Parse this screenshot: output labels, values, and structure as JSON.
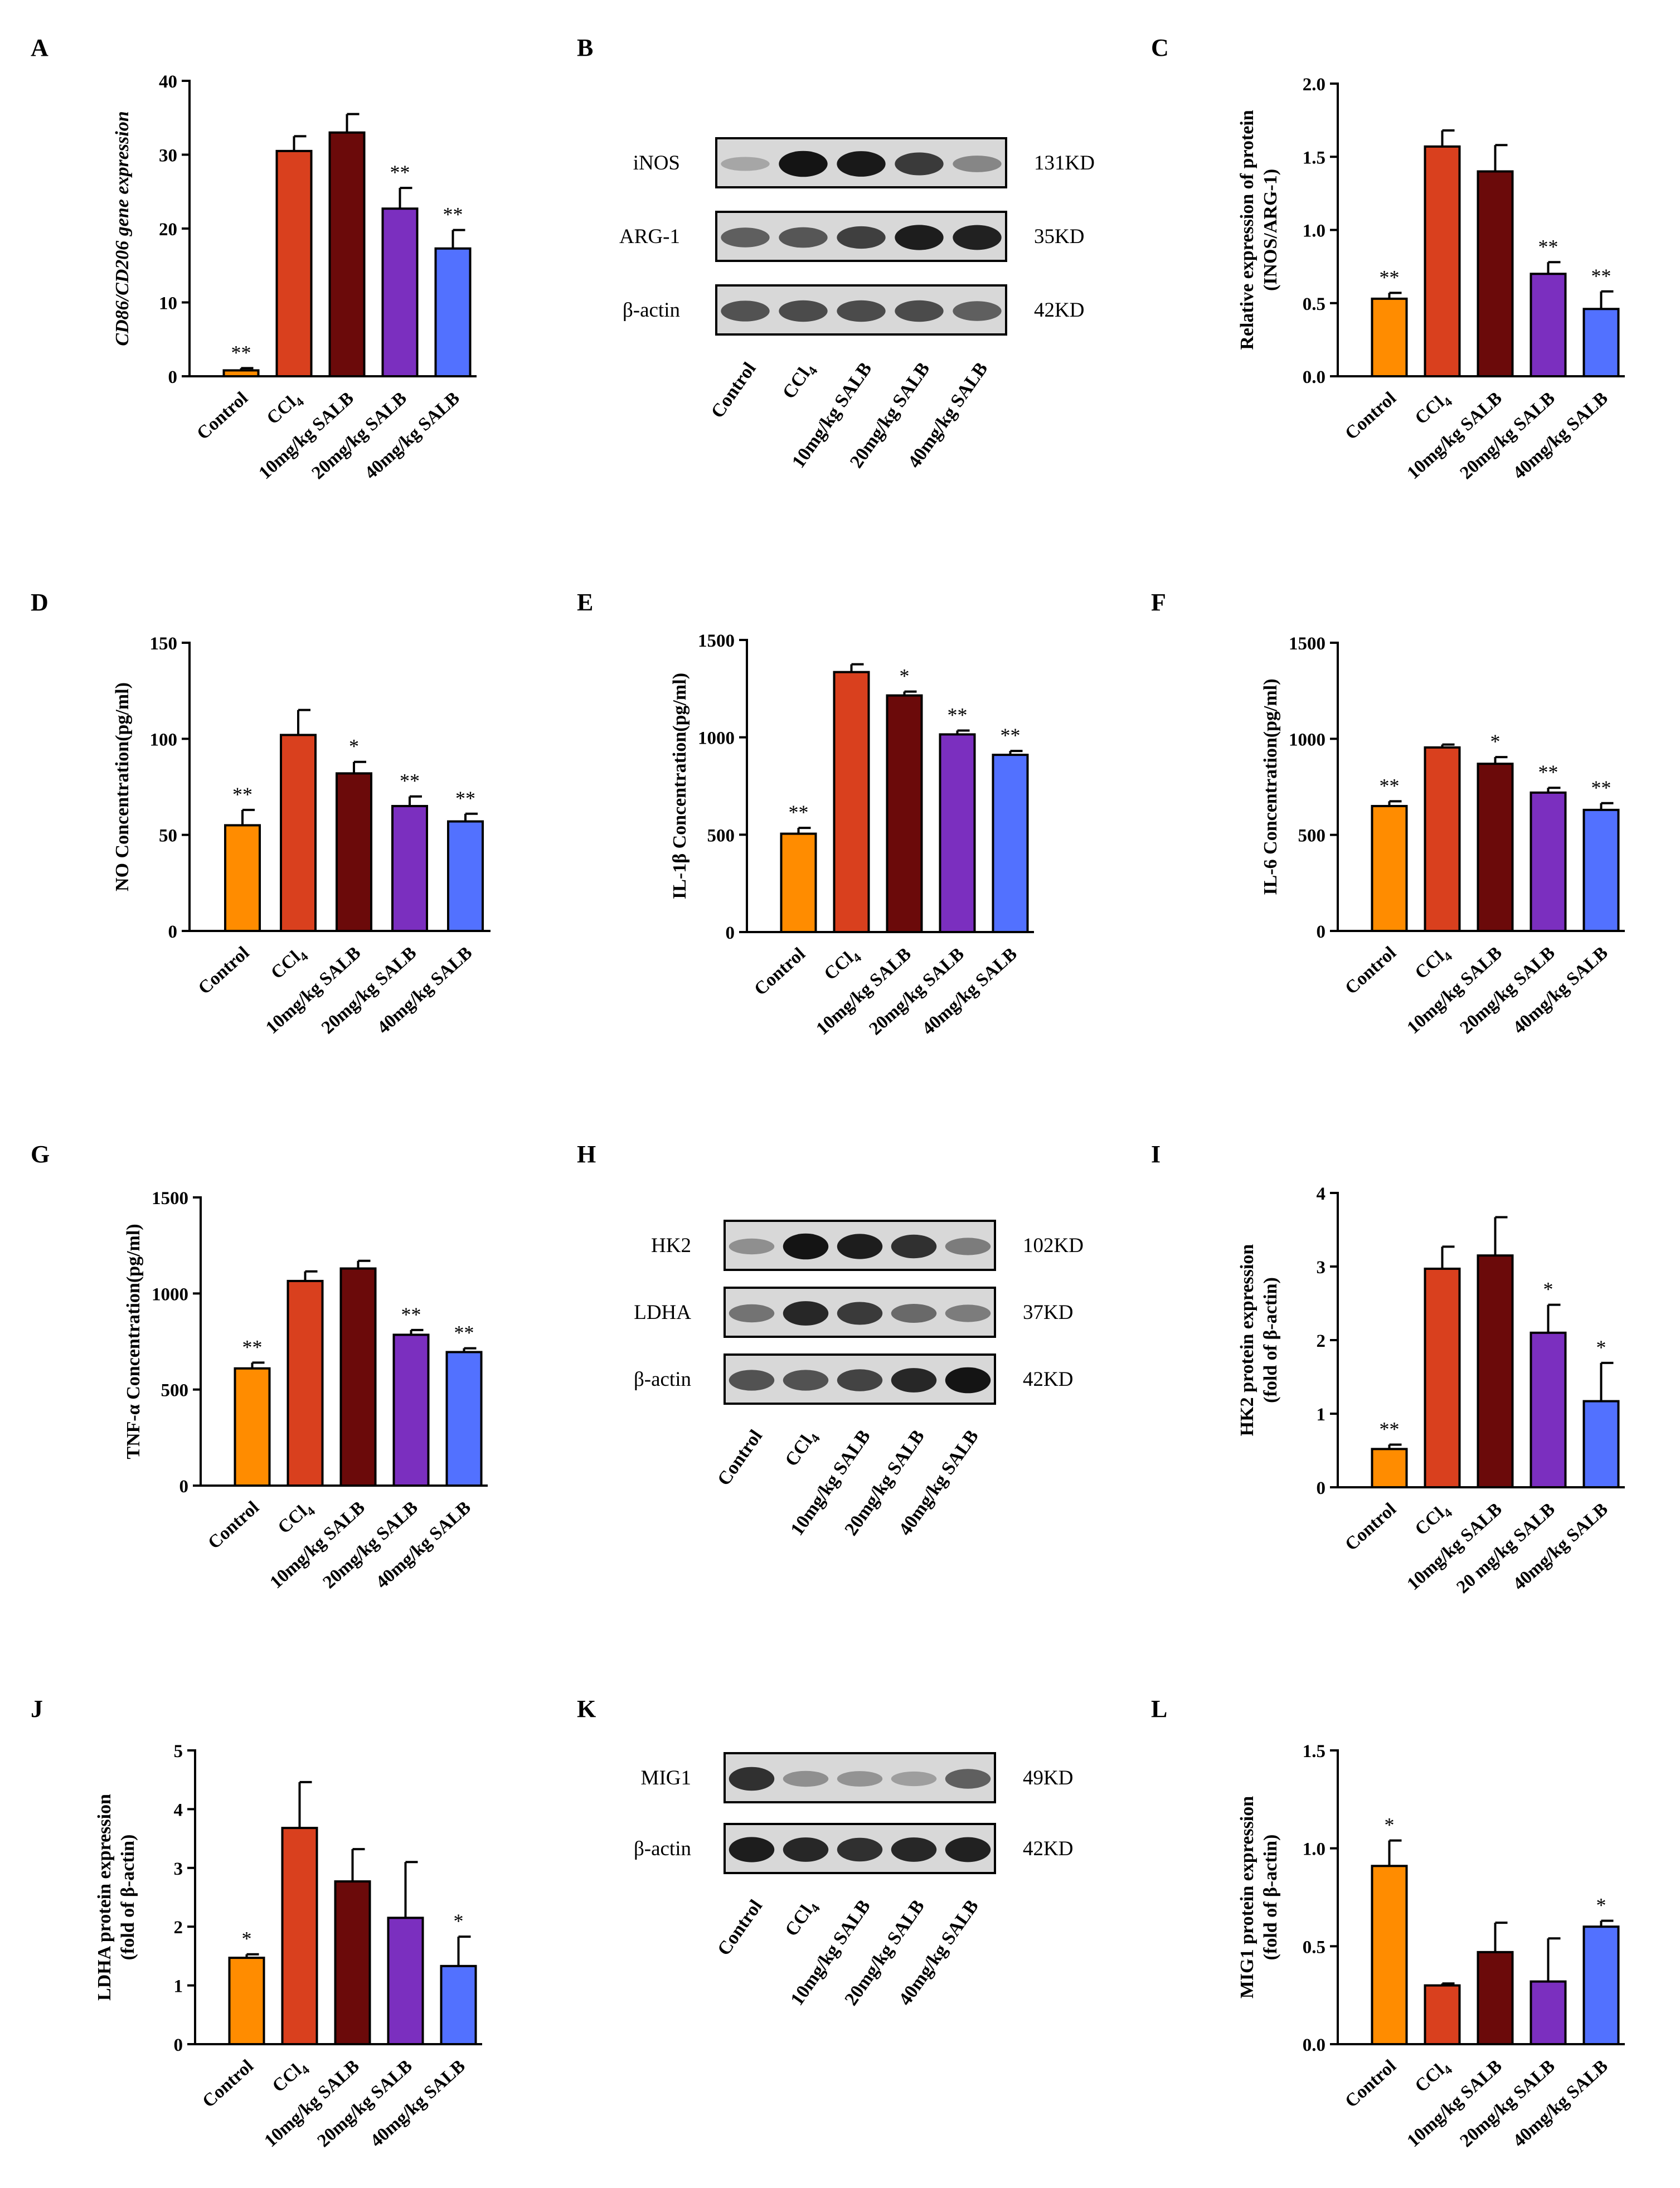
{
  "figure": {
    "groups": [
      "Control",
      "CCl4",
      "10mg/kg SALB",
      "20mg/kg SALB",
      "40mg/kg SALB"
    ],
    "group_colors": [
      "#FF8C00",
      "#D9401E",
      "#6B0A0A",
      "#7B2FBF",
      "#5271FF"
    ]
  },
  "chart_data": [
    {
      "panel": "A",
      "type": "bar",
      "ylabel": "CD86/CD206 gene expression",
      "ylabel_italic": true,
      "ylim": [
        0,
        40
      ],
      "yticks": [
        0,
        10,
        20,
        30,
        40
      ],
      "categories": [
        "Control",
        "CCl4",
        "10mg/kg SALB",
        "20mg/kg SALB",
        "40mg/kg SALB"
      ],
      "values": [
        0.8,
        30.5,
        33,
        22.7,
        17.3
      ],
      "errors": [
        0.3,
        2,
        2.5,
        2.8,
        2.5
      ],
      "annotations": [
        "**",
        "",
        "",
        "**",
        "**"
      ]
    },
    {
      "panel": "C",
      "type": "bar",
      "ylabel": "Relative expression of protein",
      "ylabel2": "(INOS/ARG-1)",
      "ylim": [
        0,
        2.0
      ],
      "yticks": [
        "0.0",
        "0.5",
        "1.0",
        "1.5",
        "2.0"
      ],
      "categories": [
        "Control",
        "CCl4",
        "10mg/kg SALB",
        "20mg/kg SALB",
        "40mg/kg SALB"
      ],
      "values": [
        0.53,
        1.57,
        1.4,
        0.7,
        0.46
      ],
      "errors": [
        0.04,
        0.11,
        0.18,
        0.08,
        0.12
      ],
      "annotations": [
        "**",
        "",
        "",
        "**",
        "**"
      ]
    },
    {
      "panel": "D",
      "type": "bar",
      "ylabel": "NO Concentration(pg/ml)",
      "ylim": [
        0,
        150
      ],
      "yticks": [
        0,
        50,
        100,
        150
      ],
      "categories": [
        "Control",
        "CCl4",
        "10mg/kg SALB",
        "20mg/kg SALB",
        "40mg/kg SALB"
      ],
      "values": [
        55,
        102,
        82,
        65,
        57
      ],
      "errors": [
        8,
        13,
        6,
        5,
        4
      ],
      "annotations": [
        "**",
        "",
        "*",
        "**",
        "**"
      ]
    },
    {
      "panel": "E",
      "type": "bar",
      "ylabel": "IL-1β Concentration(pg/ml)",
      "ylim": [
        0,
        1500
      ],
      "yticks": [
        0,
        500,
        1000,
        1500
      ],
      "categories": [
        "Control",
        "CCl4",
        "10mg/kg SALB",
        "20mg/kg SALB",
        "40mg/kg SALB"
      ],
      "values": [
        505,
        1335,
        1215,
        1015,
        910
      ],
      "errors": [
        30,
        40,
        20,
        20,
        20
      ],
      "annotations": [
        "**",
        "",
        "*",
        "**",
        "**"
      ]
    },
    {
      "panel": "F",
      "type": "bar",
      "ylabel": "IL-6 Concentration(pg/ml)",
      "ylim": [
        0,
        1500
      ],
      "yticks": [
        0,
        500,
        1000,
        1500
      ],
      "categories": [
        "Control",
        "CCl4",
        "10mg/kg SALB",
        "20mg/kg SALB",
        "40mg/kg SALB"
      ],
      "values": [
        650,
        955,
        870,
        720,
        630
      ],
      "errors": [
        25,
        15,
        35,
        25,
        35
      ],
      "annotations": [
        "**",
        "",
        "*",
        "**",
        "**"
      ]
    },
    {
      "panel": "G",
      "type": "bar",
      "ylabel": "TNF-α Concentration(pg/ml)",
      "ylim": [
        0,
        1500
      ],
      "yticks": [
        0,
        500,
        1000,
        1500
      ],
      "categories": [
        "Control",
        "CCl4",
        "10mg/kg SALB",
        "20mg/kg SALB",
        "40mg/kg SALB"
      ],
      "values": [
        610,
        1065,
        1130,
        785,
        695
      ],
      "errors": [
        30,
        50,
        40,
        25,
        20
      ],
      "annotations": [
        "**",
        "",
        "",
        "**",
        "**"
      ]
    },
    {
      "panel": "I",
      "type": "bar",
      "ylabel": "HK2 protein expression",
      "ylabel2": "(fold of β-actin)",
      "ylim": [
        0,
        4
      ],
      "yticks": [
        0,
        1,
        2,
        3,
        4
      ],
      "categories": [
        "Control",
        "CCl4",
        "10mg/kg SALB",
        "20 mg/kg SALB",
        "40mg/kg SALB"
      ],
      "values": [
        0.52,
        2.97,
        3.15,
        2.1,
        1.17
      ],
      "errors": [
        0.06,
        0.3,
        0.52,
        0.38,
        0.52
      ],
      "annotations": [
        "**",
        "",
        "",
        "*",
        "*"
      ]
    },
    {
      "panel": "J",
      "type": "bar",
      "ylabel": "LDHA protein expression",
      "ylabel2": "(fold of β-actin)",
      "ylim": [
        0,
        5
      ],
      "yticks": [
        0,
        1,
        2,
        3,
        4,
        5
      ],
      "categories": [
        "Control",
        "CCl4",
        "10mg/kg SALB",
        "20mg/kg SALB",
        "40mg/kg SALB"
      ],
      "values": [
        1.47,
        3.68,
        2.77,
        2.15,
        1.33
      ],
      "errors": [
        0.06,
        0.78,
        0.55,
        0.95,
        0.5
      ],
      "annotations": [
        "*",
        "",
        "",
        "",
        "*"
      ]
    },
    {
      "panel": "L",
      "type": "bar",
      "ylabel": "MIG1 protein expression",
      "ylabel2": "(fold of β-actin)",
      "ylim": [
        0,
        1.5
      ],
      "yticks": [
        "0.0",
        "0.5",
        "1.0",
        "1.5"
      ],
      "categories": [
        "Control",
        "CCl4",
        "10mg/kg SALB",
        "20mg/kg SALB",
        "40mg/kg SALB"
      ],
      "values": [
        0.91,
        0.3,
        0.47,
        0.32,
        0.6
      ],
      "errors": [
        0.13,
        0.01,
        0.15,
        0.22,
        0.03
      ],
      "annotations": [
        "*",
        "",
        "",
        "",
        "*"
      ]
    }
  ],
  "blots": [
    {
      "panel": "B",
      "rows": [
        {
          "label": "iNOS",
          "kd": "131KD",
          "intensities": [
            0.18,
            0.95,
            0.92,
            0.75,
            0.35
          ]
        },
        {
          "label": "ARG-1",
          "kd": "35KD",
          "intensities": [
            0.55,
            0.6,
            0.72,
            0.9,
            0.88
          ]
        },
        {
          "label": "β-actin",
          "kd": "42KD",
          "intensities": [
            0.62,
            0.66,
            0.66,
            0.66,
            0.55
          ]
        }
      ],
      "lanes": [
        "Control",
        "CCl4",
        "10mg/kg SALB",
        "20mg/kg SALB",
        "40mg/kg SALB"
      ]
    },
    {
      "panel": "H",
      "rows": [
        {
          "label": "HK2",
          "kd": "102KD",
          "intensities": [
            0.3,
            0.95,
            0.9,
            0.8,
            0.4
          ]
        },
        {
          "label": "LDHA",
          "kd": "37KD",
          "intensities": [
            0.45,
            0.85,
            0.75,
            0.5,
            0.4
          ]
        },
        {
          "label": "β-actin",
          "kd": "42KD",
          "intensities": [
            0.62,
            0.62,
            0.7,
            0.85,
            0.95
          ]
        }
      ],
      "lanes": [
        "Control",
        "CCl4",
        "10mg/kg SALB",
        "20mg/kg SALB",
        "40mg/kg SALB"
      ]
    },
    {
      "panel": "K",
      "rows": [
        {
          "label": "MIG1",
          "kd": "49KD",
          "intensities": [
            0.8,
            0.3,
            0.28,
            0.22,
            0.55
          ]
        },
        {
          "label": "β-actin",
          "kd": "42KD",
          "intensities": [
            0.9,
            0.85,
            0.8,
            0.85,
            0.88
          ]
        }
      ],
      "lanes": [
        "Control",
        "CCl4",
        "10mg/kg SALB",
        "20mg/kg SALB",
        "40mg/kg SALB"
      ]
    }
  ]
}
